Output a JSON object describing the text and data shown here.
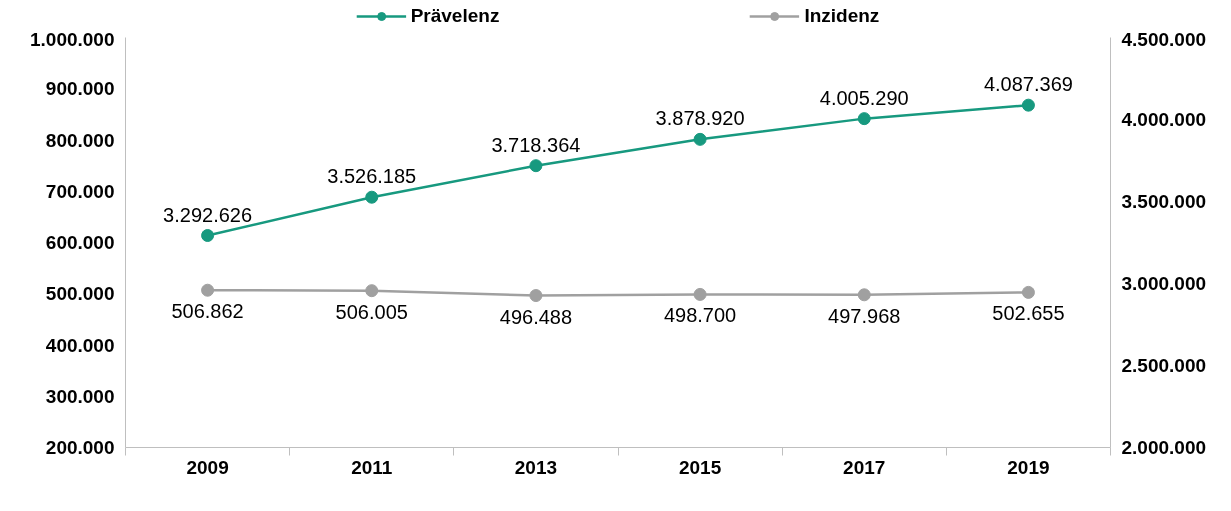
{
  "chart_data": {
    "type": "line",
    "categories": [
      "2009",
      "2011",
      "2013",
      "2015",
      "2017",
      "2019"
    ],
    "series": [
      {
        "name": "Prävelenz",
        "color": "#17997f",
        "axis": "y2",
        "values": [
          3292626,
          3526185,
          3718364,
          3878920,
          4005290,
          4087369
        ],
        "value_labels": [
          "3.292.626",
          "3.526.185",
          "3.718.364",
          "3.878.920",
          "4.005.290",
          "4.087.369"
        ]
      },
      {
        "name": "Inzidenz",
        "color": "#a0a0a0",
        "values": [
          506862,
          506005,
          496488,
          498700,
          497968,
          502655
        ],
        "value_labels": [
          "506.862",
          "506.005",
          "496.488",
          "498.700",
          "497.968",
          "502.655"
        ]
      }
    ],
    "ylim": [
      200000,
      1000000
    ],
    "yticks": [
      {
        "value": 200000,
        "label": "200.000"
      },
      {
        "value": 300000,
        "label": "300.000"
      },
      {
        "value": 400000,
        "label": "400.000"
      },
      {
        "value": 500000,
        "label": "500.000"
      },
      {
        "value": 600000,
        "label": "600.000"
      },
      {
        "value": 700000,
        "label": "700.000"
      },
      {
        "value": 800000,
        "label": "800.000"
      },
      {
        "value": 900000,
        "label": "900.000"
      },
      {
        "value": 1000000,
        "label": "1.000.000"
      }
    ],
    "y2lim": [
      2000000,
      4500000
    ],
    "y2ticks": [
      {
        "value": 2000000,
        "label": "2.000.000"
      },
      {
        "value": 2500000,
        "label": "2.500.000"
      },
      {
        "value": 3000000,
        "label": "3.000.000"
      },
      {
        "value": 3500000,
        "label": "3.500.000"
      },
      {
        "value": 4000000,
        "label": "4.000.000"
      },
      {
        "value": 4500000,
        "label": "4.500.000"
      }
    ],
    "marker": "circle",
    "line_style": "solid",
    "legend": "top",
    "grid": false
  }
}
